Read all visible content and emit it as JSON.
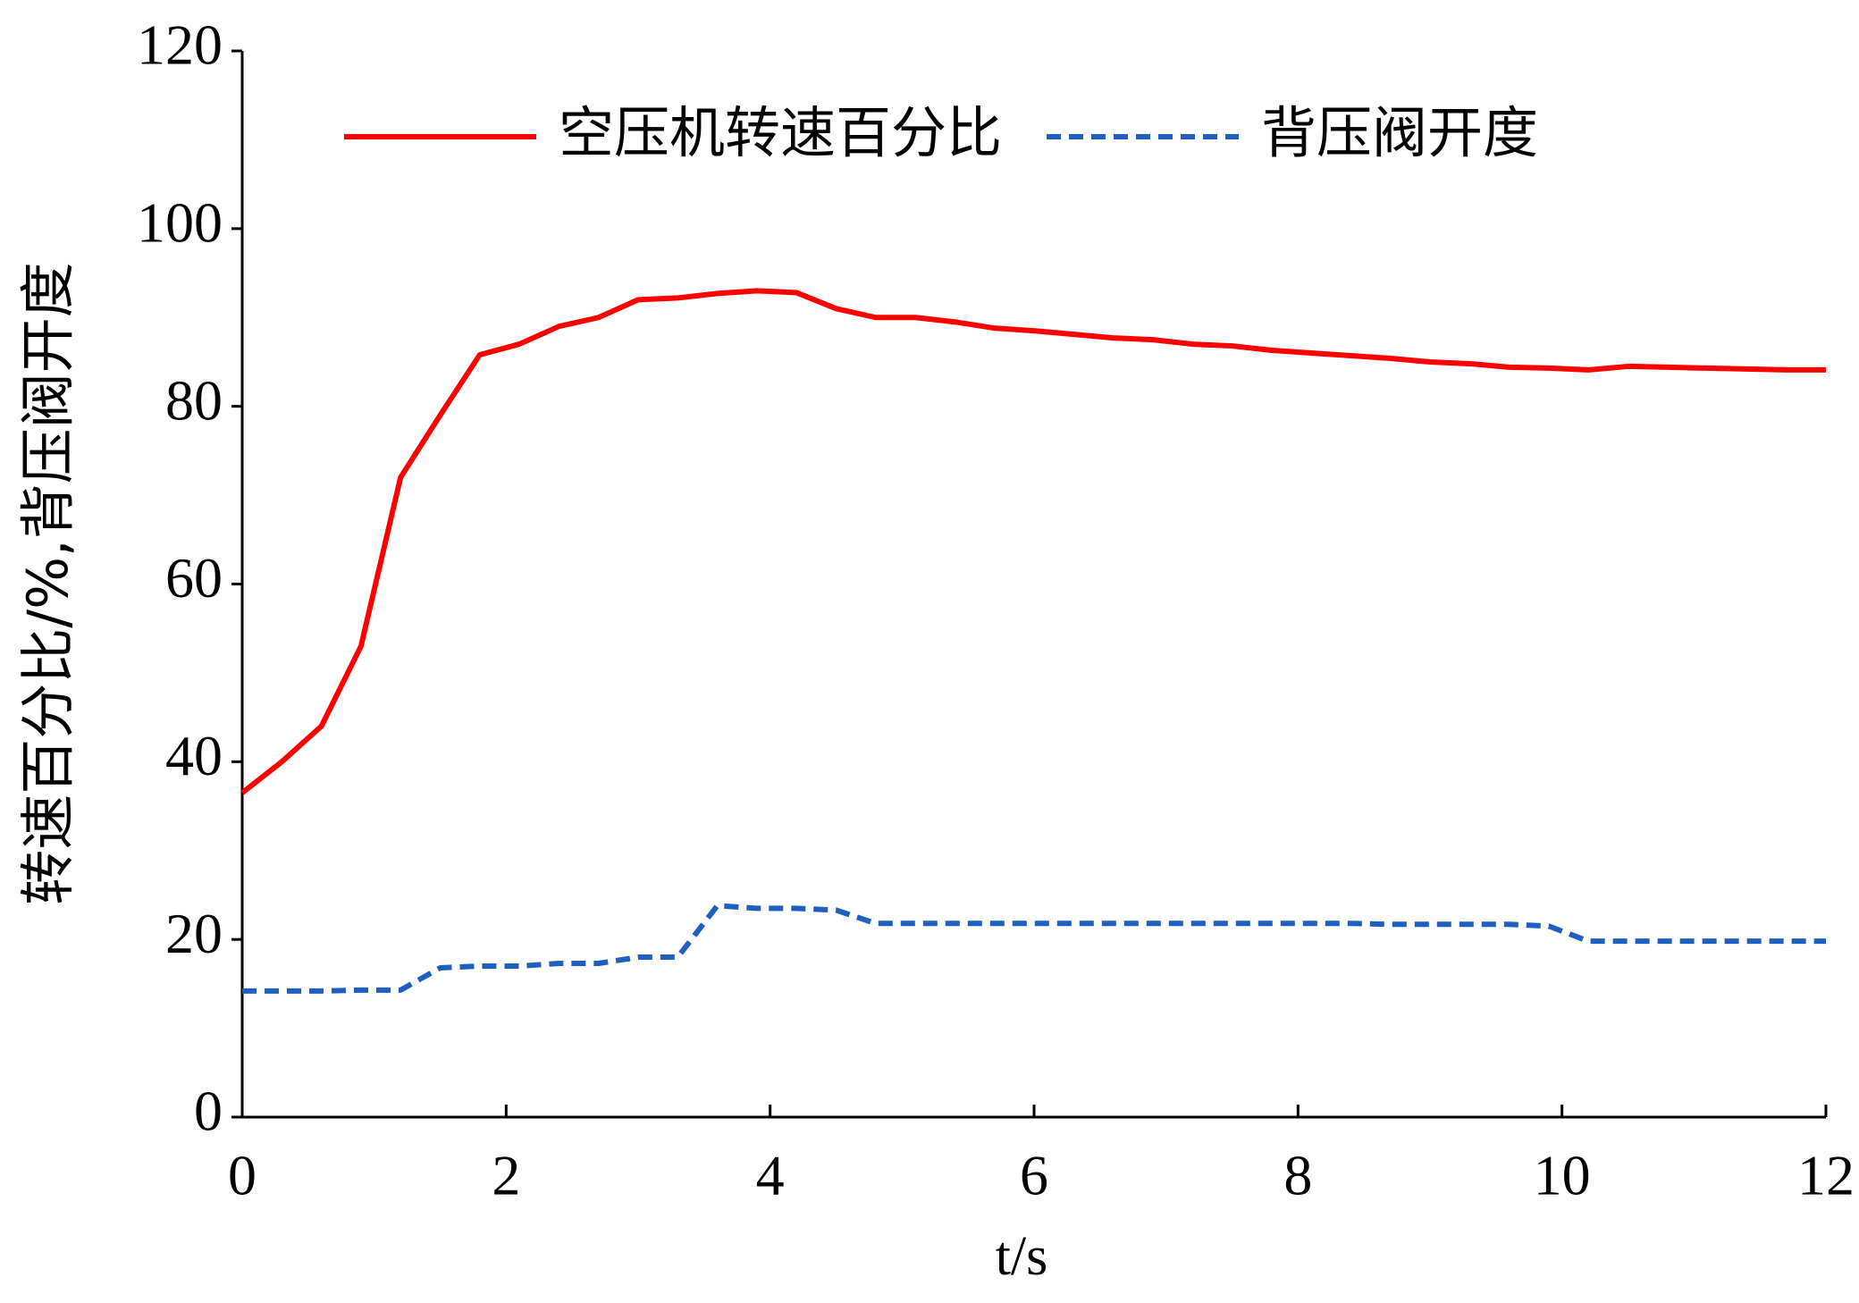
{
  "chart_data": {
    "type": "line",
    "xlabel": "t/s",
    "ylabel": "转速百分比/%,背压阀开度",
    "x": [
      0,
      0.3,
      0.6,
      0.9,
      1.2,
      1.5,
      1.8,
      2.1,
      2.4,
      2.7,
      3.0,
      3.3,
      3.6,
      3.9,
      4.2,
      4.5,
      4.8,
      5.1,
      5.4,
      5.7,
      6.0,
      6.3,
      6.6,
      6.9,
      7.2,
      7.5,
      7.8,
      8.1,
      8.4,
      8.7,
      9.0,
      9.3,
      9.6,
      9.9,
      10.2,
      10.5,
      10.8,
      11.1,
      11.4,
      11.7,
      12.0
    ],
    "series": [
      {
        "name": "空压机转速百分比",
        "color": "#ff0000",
        "style": "solid",
        "values": [
          36.5,
          40,
          44,
          53,
          72,
          79,
          85.8,
          87,
          89,
          90,
          92,
          92.2,
          92.7,
          93,
          92.8,
          91,
          90,
          90,
          89.5,
          88.8,
          88.5,
          88.1,
          87.7,
          87.5,
          87,
          86.8,
          86.3,
          86,
          85.7,
          85.4,
          85,
          84.8,
          84.4,
          84.3,
          84.1,
          84.5,
          84.4,
          84.3,
          84.2,
          84.1,
          84.1
        ]
      },
      {
        "name": "背压阀开度",
        "color": "#1f5fbf",
        "style": "dashed",
        "values": [
          14.2,
          14.2,
          14.2,
          14.3,
          14.3,
          16.8,
          17,
          17,
          17.3,
          17.3,
          18,
          18,
          23.8,
          23.5,
          23.5,
          23.3,
          21.8,
          21.8,
          21.8,
          21.8,
          21.8,
          21.8,
          21.8,
          21.8,
          21.8,
          21.8,
          21.8,
          21.8,
          21.8,
          21.7,
          21.7,
          21.7,
          21.7,
          21.5,
          19.8,
          19.8,
          19.8,
          19.8,
          19.8,
          19.8,
          19.8
        ]
      }
    ],
    "xlim": [
      0,
      12
    ],
    "xticks": [
      0,
      2,
      4,
      6,
      8,
      10,
      12
    ],
    "ylim": [
      0,
      120
    ],
    "yticks": [
      0,
      20,
      40,
      60,
      80,
      100,
      120
    ],
    "grid": false,
    "legend": "top"
  }
}
